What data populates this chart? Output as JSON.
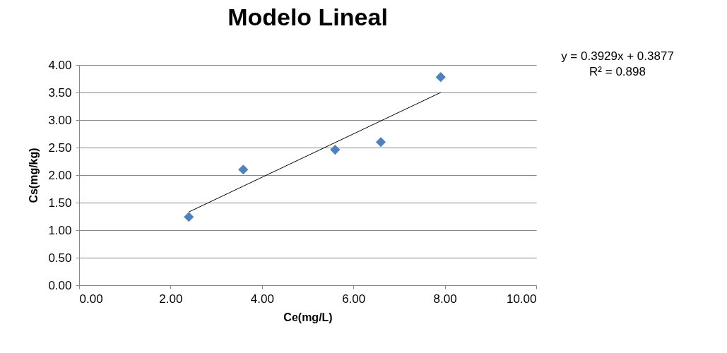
{
  "chart_data": {
    "type": "scatter",
    "title": "Modelo Lineal",
    "xlabel": "Ce(mg/L)",
    "ylabel": "Cs(mg/kg)",
    "series": [
      {
        "type": "scatter",
        "color": "#4f81bd",
        "marker": "diamond",
        "x": [
          2.4,
          3.59,
          5.6,
          6.6,
          7.91
        ],
        "values": [
          1.24,
          2.1,
          2.46,
          2.6,
          3.78
        ]
      },
      {
        "type": "line",
        "color": "#000000",
        "marker": "none",
        "x": [
          2.4,
          7.91
        ],
        "values": [
          1.33,
          3.5
        ]
      }
    ],
    "xlim": [
      0,
      10
    ],
    "ylim": [
      0,
      4
    ],
    "xticks": [
      {
        "value": 0,
        "label": "0.00"
      },
      {
        "value": 2,
        "label": "2.00"
      },
      {
        "value": 4,
        "label": "4.00"
      },
      {
        "value": 6,
        "label": "6.00"
      },
      {
        "value": 8,
        "label": "8.00"
      },
      {
        "value": 10,
        "label": "10.00"
      }
    ],
    "yticks": [
      {
        "value": 0,
        "label": "0.00"
      },
      {
        "value": 0.5,
        "label": "0.50"
      },
      {
        "value": 1,
        "label": "1.00"
      },
      {
        "value": 1.5,
        "label": "1.50"
      },
      {
        "value": 2,
        "label": "2.00"
      },
      {
        "value": 2.5,
        "label": "2.50"
      },
      {
        "value": 3,
        "label": "3.00"
      },
      {
        "value": 3.5,
        "label": "3.50"
      },
      {
        "value": 4,
        "label": "4.00"
      }
    ],
    "grid": "y",
    "legend": false,
    "annotations": [
      "y = 0.3929x + 0.3877",
      "R² = 0.898"
    ]
  }
}
